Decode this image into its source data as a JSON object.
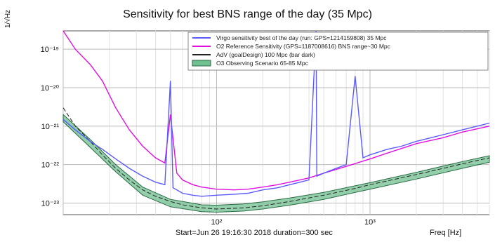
{
  "chart_data": {
    "type": "line",
    "title": "Sensitivity for best BNS range of the day (35 Mpc)",
    "ylabel": "1/√Hz",
    "xlabel": "Freq [Hz]",
    "footer": "Start=Jun 26 19:16:30 2018 duration=300 sec",
    "xscale": "log",
    "yscale": "log",
    "xlim": [
      10,
      6000
    ],
    "ylim": [
      5e-24,
      3e-19
    ],
    "x_ticks": [
      {
        "value": 100,
        "label": "10²"
      },
      {
        "value": 1000,
        "label": "10³"
      }
    ],
    "y_ticks": [
      {
        "value": 1e-19,
        "label": "10⁻¹⁹"
      },
      {
        "value": 1e-20,
        "label": "10⁻²⁰"
      },
      {
        "value": 1e-21,
        "label": "10⁻²¹"
      },
      {
        "value": 1e-22,
        "label": "10⁻²²"
      },
      {
        "value": 1e-23,
        "label": "10⁻²³"
      }
    ],
    "grid": true,
    "legend_position": "top-right",
    "series": [
      {
        "name": "Virgo sensitivity best of the day (run: GPS=1214159808) 35 Mpc",
        "color": "#5a5aff",
        "x": [
          10,
          12,
          15,
          18,
          22,
          27,
          33,
          40,
          46,
          50,
          52,
          55,
          60,
          70,
          80,
          100,
          130,
          160,
          200,
          250,
          300,
          350,
          400,
          445,
          450,
          500,
          600,
          700,
          800,
          900,
          1000,
          1300,
          1600,
          2000,
          2500,
          3000,
          4000,
          5000,
          6000
        ],
        "y": [
          1.5e-21,
          8e-22,
          4e-22,
          2.5e-22,
          1.4e-22,
          8e-23,
          5e-23,
          3.5e-23,
          3e-23,
          1.5e-20,
          2.5e-23,
          2.2e-23,
          1.8e-23,
          1.6e-23,
          1.5e-23,
          1.6e-23,
          1.7e-23,
          1.8e-23,
          2.2e-23,
          2.5e-23,
          3e-23,
          3.5e-23,
          4e-23,
          3e-19,
          5e-23,
          6e-23,
          8e-23,
          1e-22,
          2e-20,
          1.5e-22,
          1.8e-22,
          2.5e-22,
          3e-22,
          4e-22,
          5e-22,
          6e-22,
          8e-22,
          1e-21,
          1.2e-21
        ]
      },
      {
        "name": "O2 Reference Sensitivity (GPS=1187008616) BNS range~30 Mpc",
        "color": "#e010e0",
        "x": [
          10,
          12,
          15,
          18,
          22,
          27,
          33,
          40,
          46,
          50,
          55,
          60,
          70,
          80,
          100,
          130,
          160,
          200,
          250,
          300,
          400,
          500,
          700,
          1000,
          1300,
          2000,
          3000,
          4000,
          6000
        ],
        "y": [
          3e-19,
          1e-19,
          4e-20,
          1.5e-20,
          3e-21,
          8e-22,
          3e-22,
          1.5e-22,
          1.1e-22,
          2e-21,
          6e-23,
          4e-23,
          3e-23,
          2.6e-23,
          2.3e-23,
          2.2e-23,
          2.3e-23,
          2.6e-23,
          3e-23,
          3.5e-23,
          4.5e-23,
          6e-23,
          9e-23,
          1.4e-22,
          2e-22,
          3.5e-22,
          5e-22,
          7e-22,
          1e-21
        ]
      },
      {
        "name": "AdV (goalDesign) 100 Mpc (bar dark)",
        "color": "#222222",
        "x": [
          10,
          12,
          15,
          18,
          22,
          27,
          33,
          40,
          50,
          60,
          80,
          100,
          150,
          200,
          300,
          500,
          800,
          1000,
          2000,
          3000,
          4000,
          6000
        ],
        "y": [
          3e-21,
          1e-21,
          4e-22,
          1.8e-22,
          8e-23,
          4e-23,
          2.2e-23,
          1.5e-23,
          1.1e-23,
          9e-24,
          7.5e-24,
          7e-24,
          7.5e-24,
          8.5e-24,
          1.1e-23,
          1.6e-23,
          2.4e-23,
          3e-23,
          5.5e-23,
          8e-23,
          1.05e-22,
          1.5e-22
        ]
      },
      {
        "name": "O3 Observing Scenario 65-85 Mpc",
        "color": "#6fbf8f",
        "band": true,
        "x": [
          10,
          15,
          22,
          33,
          50,
          80,
          100,
          150,
          200,
          300,
          500,
          1000,
          2000,
          4000,
          6000
        ],
        "y_low": [
          1.3e-21,
          2.8e-22,
          6.5e-23,
          1.6e-23,
          8e-24,
          6e-24,
          5.8e-24,
          6.2e-24,
          7e-24,
          8.8e-24,
          1.25e-23,
          2.3e-23,
          4.2e-23,
          8e-23,
          1.15e-22
        ],
        "y_high": [
          2e-21,
          4.5e-22,
          1e-22,
          2.6e-23,
          1.25e-23,
          9e-24,
          8.8e-24,
          9.5e-24,
          1.08e-23,
          1.35e-23,
          1.9e-23,
          3.4e-23,
          6.3e-23,
          1.2e-22,
          1.7e-22
        ]
      }
    ]
  }
}
